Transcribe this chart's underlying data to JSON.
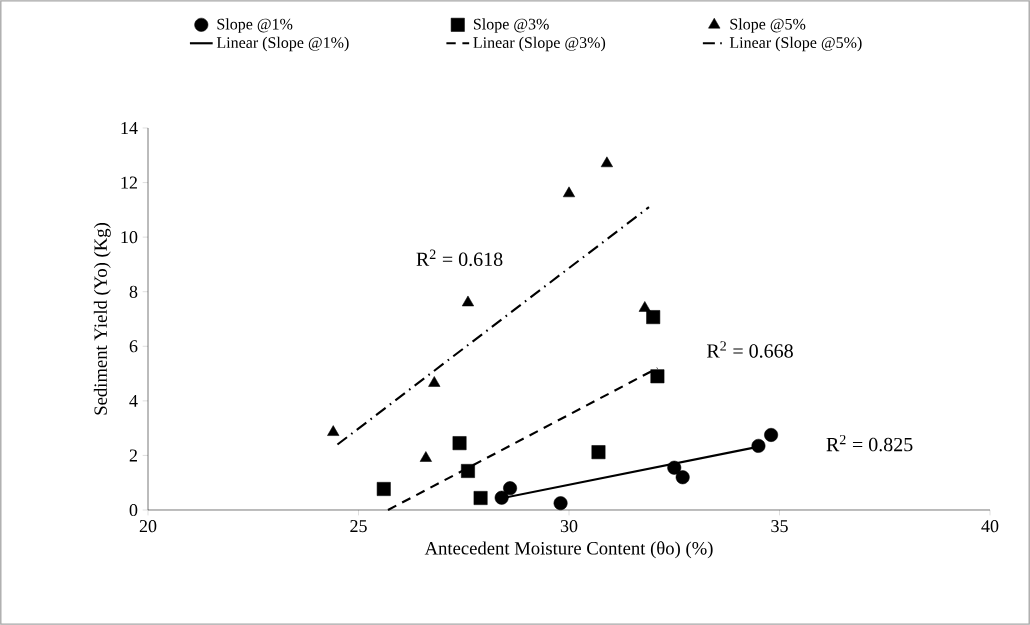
{
  "chart_data": {
    "type": "scatter",
    "xlabel": "Antecedent Moisture Content (θo) (%)",
    "ylabel": "Sediment Yield (Yo) (Kg)",
    "xlim": [
      20,
      40
    ],
    "ylim": [
      0,
      14
    ],
    "xticks": [
      20,
      25,
      30,
      35,
      40
    ],
    "yticks": [
      0,
      2,
      4,
      6,
      8,
      10,
      12,
      14
    ],
    "legend": "top",
    "grid": false,
    "series": [
      {
        "name": "Slope @1%",
        "color": "#000000",
        "marker": "circle",
        "x": [
          28.6,
          28.4,
          29.8,
          32.5,
          32.7,
          34.5,
          34.8
        ],
        "values": [
          0.8,
          0.45,
          0.25,
          1.55,
          1.2,
          2.35,
          2.75
        ]
      },
      {
        "name": "Slope @3%",
        "color": "#000000",
        "marker": "square",
        "x": [
          25.6,
          27.4,
          27.6,
          27.9,
          30.7,
          32.0,
          32.1
        ],
        "values": [
          0.77,
          2.45,
          1.43,
          0.44,
          2.12,
          7.07,
          4.9
        ]
      },
      {
        "name": "Slope @5%",
        "color": "#000000",
        "marker": "triangle",
        "x": [
          24.4,
          26.6,
          26.8,
          27.6,
          30.0,
          30.9,
          31.8
        ],
        "values": [
          2.85,
          1.9,
          4.65,
          7.6,
          11.6,
          12.7,
          7.4
        ]
      },
      {
        "name": "Linear (Slope @1%)",
        "type": "line",
        "color": "#000000",
        "line_style": "solid",
        "x": [
          28.3,
          34.6
        ],
        "values": [
          0.4,
          2.35
        ]
      },
      {
        "name": "Linear (Slope @3%)",
        "type": "line",
        "color": "#000000",
        "line_style": "dashed",
        "x": [
          25.7,
          32.1
        ],
        "values": [
          0,
          5.2
        ]
      },
      {
        "name": "Linear (Slope @5%)",
        "type": "line",
        "color": "#000000",
        "line_style": "dashdot",
        "x": [
          24.5,
          31.9
        ],
        "values": [
          2.4,
          11.1
        ]
      }
    ],
    "annotations": [
      "R$^{2}$ = 0.618",
      "R$^{2}$ = 0.668",
      "R$^{2}$ = 0.825"
    ]
  }
}
